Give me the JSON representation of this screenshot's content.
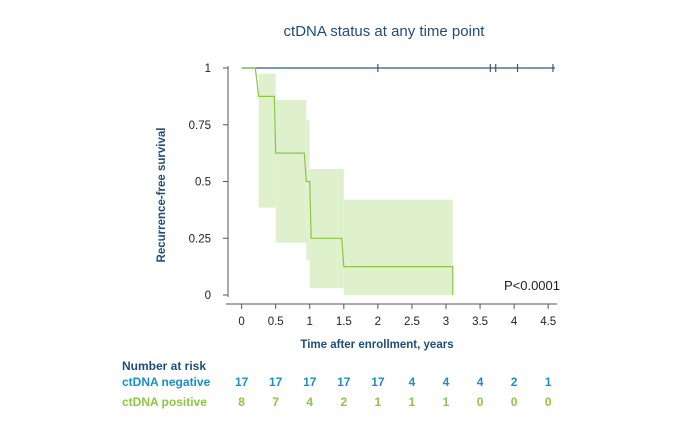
{
  "chart_data": {
    "type": "line",
    "title": "ctDNA status at any time point",
    "xlabel": "Time after enrollment, years",
    "ylabel": "Recurrence-free survival",
    "xlim": [
      -0.2,
      4.6
    ],
    "ylim": [
      0,
      1
    ],
    "x_ticks": [
      0,
      0.5,
      1,
      1.5,
      2,
      2.5,
      3,
      3.5,
      4,
      4.5
    ],
    "x_tick_labels": [
      "0",
      "0.5",
      "1",
      "1.5",
      "2",
      "2.5",
      "3",
      "3.5",
      "4",
      "4.5"
    ],
    "y_ticks": [
      0,
      0.25,
      0.5,
      0.75,
      1
    ],
    "y_tick_labels": [
      "0",
      "0.25",
      "0.5",
      "0.75",
      "1"
    ],
    "grid": false,
    "annotation": "P<0.0001",
    "colors": {
      "negative": "#2f5d7e",
      "positive": "#8cc63f",
      "ci_fill": "#dff0cc",
      "negative_label": "#1a8fc9",
      "positive_label": "#8cc63f"
    },
    "series": [
      {
        "name": "ctDNA negative",
        "steps": [
          [
            0,
            1
          ],
          [
            4.6,
            1
          ]
        ],
        "censor_x": [
          2.0,
          3.65,
          3.73,
          4.05,
          4.57
        ]
      },
      {
        "name": "ctDNA positive",
        "steps": [
          [
            0,
            1
          ],
          [
            0.2,
            1
          ],
          [
            0.25,
            0.875
          ],
          [
            0.48,
            0.875
          ],
          [
            0.5,
            0.625
          ],
          [
            0.92,
            0.625
          ],
          [
            0.95,
            0.5
          ],
          [
            1.0,
            0.5
          ],
          [
            1.02,
            0.25
          ],
          [
            1.47,
            0.25
          ],
          [
            1.5,
            0.125
          ],
          [
            3.1,
            0.125
          ],
          [
            3.1,
            0
          ]
        ],
        "ci": [
          {
            "x0": 0.25,
            "x1": 0.5,
            "lo": 0.385,
            "hi": 0.975
          },
          {
            "x0": 0.5,
            "x1": 0.95,
            "lo": 0.23,
            "hi": 0.86
          },
          {
            "x0": 0.95,
            "x1": 1.0,
            "lo": 0.155,
            "hi": 0.77
          },
          {
            "x0": 1.0,
            "x1": 1.5,
            "lo": 0.03,
            "hi": 0.555
          },
          {
            "x0": 1.5,
            "x1": 3.1,
            "lo": 0.0,
            "hi": 0.42
          }
        ]
      }
    ]
  },
  "risk_table": {
    "title": "Number at risk",
    "rows": [
      {
        "label": "ctDNA negative",
        "counts": [
          "17",
          "17",
          "17",
          "17",
          "17",
          "4",
          "4",
          "4",
          "2",
          "1"
        ]
      },
      {
        "label": "ctDNA positive",
        "counts": [
          "8",
          "7",
          "4",
          "2",
          "1",
          "1",
          "1",
          "0",
          "0",
          "0"
        ]
      }
    ]
  }
}
